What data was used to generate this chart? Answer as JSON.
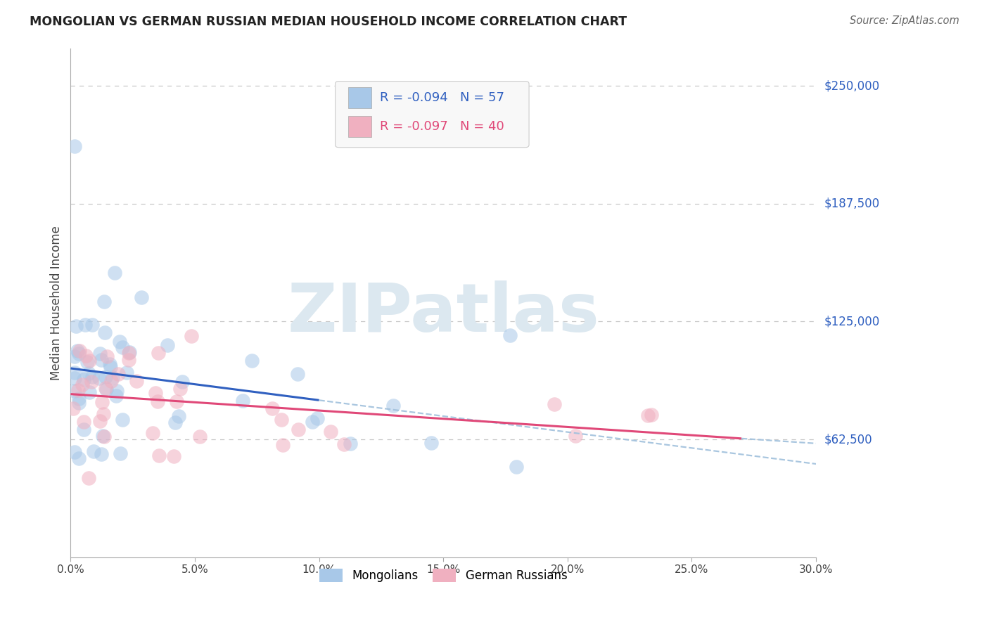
{
  "title": "MONGOLIAN VS GERMAN RUSSIAN MEDIAN HOUSEHOLD INCOME CORRELATION CHART",
  "source": "Source: ZipAtlas.com",
  "ylabel": "Median Household Income",
  "y_ticks": [
    62500,
    125000,
    187500,
    250000
  ],
  "y_tick_labels": [
    "$62,500",
    "$125,000",
    "$187,500",
    "$250,000"
  ],
  "mongolian_color": "#a8c8e8",
  "mongolian_line_color": "#3060c0",
  "german_color": "#f0b0c0",
  "german_line_color": "#e04878",
  "dashed_color": "#a0c0dc",
  "background_color": "#ffffff",
  "grid_color": "#c8c8c8",
  "watermark_color": "#dce8f0",
  "xmin": 0,
  "xmax": 30,
  "ymin": 0,
  "ymax": 270000,
  "mongolian_seed": 10,
  "german_seed": 20,
  "dot_size": 220,
  "dot_alpha": 0.55,
  "trend_linewidth": 2.2
}
